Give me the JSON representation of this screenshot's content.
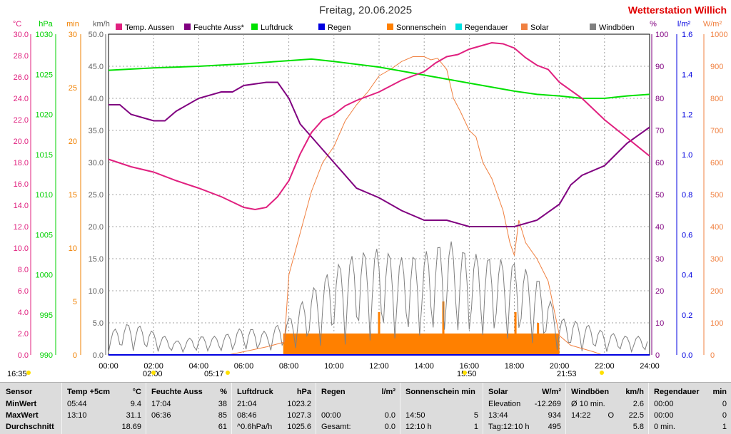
{
  "header": {
    "title": "Freitag, 20.06.2025",
    "station": "Wetterstation Willich"
  },
  "axes_left": [
    {
      "unit": "°C",
      "color": "#e0207f",
      "ticks": [
        "30.0",
        "28.0",
        "26.0",
        "24.0",
        "22.0",
        "20.0",
        "18.0",
        "16.0",
        "14.0",
        "12.0",
        "10.0",
        "8.0",
        "6.0",
        "4.0",
        "2.0",
        "0.0"
      ],
      "range": [
        0,
        30
      ]
    },
    {
      "unit": "hPa",
      "color": "#00d000",
      "ticks": [
        "1030",
        "1025",
        "1020",
        "1015",
        "1010",
        "1005",
        "1000",
        "995",
        "990"
      ],
      "range": [
        990,
        1030
      ]
    },
    {
      "unit": "min",
      "color": "#f08000",
      "ticks": [
        "30",
        "25",
        "20",
        "15",
        "10",
        "5",
        "0"
      ],
      "range": [
        0,
        30
      ]
    },
    {
      "unit": "km/h",
      "color": "#606060",
      "ticks": [
        "50.0",
        "45.0",
        "40.0",
        "35.0",
        "30.0",
        "25.0",
        "20.0",
        "15.0",
        "10.0",
        "5.0",
        "0.0"
      ],
      "range": [
        0,
        50
      ]
    }
  ],
  "axes_right": [
    {
      "unit": "%",
      "color": "#800080",
      "ticks": [
        "100",
        "90",
        "80",
        "70",
        "60",
        "50",
        "40",
        "30",
        "20",
        "10",
        "0"
      ],
      "range": [
        0,
        100
      ]
    },
    {
      "unit": "l/m²",
      "color": "#0000e0",
      "ticks": [
        "1.6",
        "1.4",
        "1.2",
        "1.0",
        "0.8",
        "0.6",
        "0.4",
        "0.2",
        "0.0"
      ],
      "range": [
        0,
        1.6
      ]
    },
    {
      "unit": "W/m²",
      "color": "#f08040",
      "ticks": [
        "1000",
        "900",
        "800",
        "700",
        "600",
        "500",
        "400",
        "300",
        "200",
        "100",
        "0"
      ],
      "range": [
        0,
        1000
      ]
    }
  ],
  "legend": [
    {
      "label": "Temp. Aussen",
      "color": "#e0207f"
    },
    {
      "label": "Feuchte Auss*",
      "color": "#800080"
    },
    {
      "label": "Luftdruck",
      "color": "#00e000"
    },
    {
      "label": "Regen",
      "color": "#0000e0"
    },
    {
      "label": "Sonnenschein",
      "color": "#ff8000"
    },
    {
      "label": "Regendauer",
      "color": "#00e0e0"
    },
    {
      "label": "Solar",
      "color": "#f08040"
    },
    {
      "label": "Windböen",
      "color": "#808080"
    }
  ],
  "x_ticks": [
    "00:00",
    "02:00",
    "04:00",
    "06:00",
    "08:00",
    "10:00",
    "12:00",
    "14:00",
    "16:00",
    "18:00",
    "20:00",
    "22:00",
    "24:00"
  ],
  "sun_markers": [
    "16:35",
    "02:00",
    "05:17",
    "15:50",
    "21:53"
  ],
  "chart_data": {
    "type": "line",
    "title": "Freitag, 20.06.2025",
    "x_unit": "hours",
    "xlim": [
      0,
      24
    ],
    "grid": true,
    "legend_placement": "top",
    "series": [
      {
        "name": "Temp. Aussen",
        "unit": "°C",
        "color": "#e0207f",
        "x": [
          0,
          1,
          2,
          3,
          4,
          5,
          5.5,
          6,
          6.5,
          7,
          7.5,
          8,
          8.5,
          9,
          9.5,
          10,
          10.5,
          11,
          12,
          13,
          14,
          14.5,
          15,
          15.5,
          16,
          16.5,
          17,
          17.5,
          18,
          18.5,
          19,
          19.5,
          20,
          21,
          22,
          23,
          24
        ],
        "y": [
          18.3,
          17.6,
          17.1,
          16.3,
          15.6,
          14.8,
          14.3,
          13.8,
          13.6,
          13.8,
          14.8,
          16.3,
          18.8,
          20.8,
          22.0,
          22.5,
          23.3,
          23.8,
          24.6,
          25.7,
          26.5,
          27.3,
          27.9,
          28.1,
          28.6,
          28.9,
          29.2,
          29.1,
          28.7,
          27.8,
          27.1,
          26.7,
          25.5,
          24.0,
          22.0,
          20.3,
          18.6
        ]
      },
      {
        "name": "Feuchte Auss*",
        "unit": "%",
        "color": "#800080",
        "x": [
          0,
          0.5,
          1,
          2,
          2.5,
          3,
          4,
          5,
          5.5,
          6,
          7,
          7.5,
          8,
          8.5,
          9,
          10,
          11,
          12,
          13,
          14,
          15,
          16,
          17,
          18,
          19,
          20,
          20.5,
          21,
          22,
          23,
          24
        ],
        "y": [
          78,
          78,
          75,
          73,
          73,
          76,
          80,
          82,
          82,
          84,
          85,
          85,
          80,
          72,
          68,
          60,
          52,
          49,
          45,
          42,
          42,
          40,
          40,
          40,
          42,
          47,
          53,
          56,
          59,
          66,
          71
        ]
      },
      {
        "name": "Luftdruck",
        "unit": "hPa",
        "color": "#00e000",
        "x": [
          0,
          2,
          4,
          6,
          8,
          9,
          10,
          12,
          14,
          16,
          18,
          19,
          20,
          21,
          22,
          23,
          24
        ],
        "y": [
          1025.5,
          1025.8,
          1026.0,
          1026.3,
          1026.7,
          1026.9,
          1026.6,
          1025.9,
          1024.9,
          1023.9,
          1022.9,
          1022.5,
          1022.3,
          1022.0,
          1022.0,
          1022.3,
          1022.5
        ]
      },
      {
        "name": "Regen",
        "unit": "l/m²",
        "color": "#0000e0",
        "x": [
          0,
          24
        ],
        "y": [
          0,
          0
        ]
      },
      {
        "name": "Solar",
        "unit": "W/m²",
        "color": "#f08040",
        "x": [
          0,
          5.3,
          6,
          7,
          7.8,
          8,
          8.5,
          9,
          9.5,
          10,
          10.5,
          11,
          11.5,
          12,
          12.5,
          13,
          13.5,
          14,
          14.3,
          14.6,
          15,
          15.3,
          15.6,
          15.8,
          16,
          16.3,
          16.6,
          17,
          17.5,
          17.8,
          18.0,
          18.2,
          18.5,
          19,
          19.5,
          20,
          20.5,
          21,
          21.5,
          21.9,
          24
        ],
        "y": [
          0,
          0,
          10,
          25,
          40,
          250,
          380,
          510,
          600,
          650,
          730,
          780,
          820,
          870,
          890,
          915,
          930,
          930,
          920,
          925,
          890,
          800,
          760,
          730,
          700,
          680,
          600,
          550,
          450,
          350,
          310,
          420,
          350,
          300,
          230,
          60,
          30,
          20,
          10,
          0,
          0
        ]
      },
      {
        "name": "Sonnenschein",
        "unit": "min",
        "color": "#ff8000",
        "x": [
          7.75,
          12,
          12.05,
          14.8,
          14.85,
          18.05,
          18.1,
          19,
          19.05,
          20.0
        ],
        "y": [
          2,
          2,
          4,
          2,
          5,
          2,
          4,
          2,
          3,
          2
        ]
      },
      {
        "name": "Windböen",
        "unit": "km/h",
        "color": "#808080",
        "x": [
          0,
          1,
          2,
          3,
          4,
          5,
          6,
          7,
          8,
          9,
          10,
          11,
          12,
          13,
          14,
          15,
          16,
          17,
          18,
          19,
          20,
          21,
          22,
          23,
          24
        ],
        "y": [
          2.5,
          3.5,
          2.5,
          1.5,
          2.0,
          2.0,
          3.0,
          2.5,
          4.0,
          7.0,
          9.5,
          11.0,
          11.5,
          10.5,
          11.0,
          12.5,
          11.0,
          10.5,
          10.0,
          8.5,
          4.0,
          3.5,
          2.5,
          2.0,
          2.0
        ]
      }
    ]
  },
  "stats": {
    "columns": [
      {
        "title": "Sensor",
        "unit": "",
        "rows": [
          {
            "a": "MinWert",
            "b": "",
            "c": ""
          },
          {
            "a": "MaxWert",
            "b": "",
            "c": ""
          },
          {
            "a": "Durchschnitt",
            "b": "",
            "c": ""
          }
        ]
      },
      {
        "title": "Temp +5cm",
        "unit": "°C",
        "rows": [
          {
            "a": "05:44",
            "c": "9.4"
          },
          {
            "a": "13:10",
            "c": "31.1"
          },
          {
            "a": "",
            "c": "18.69"
          }
        ]
      },
      {
        "title": "Feuchte Auss",
        "unit": "%",
        "rows": [
          {
            "a": "17:04",
            "c": "38"
          },
          {
            "a": "06:36",
            "c": "85"
          },
          {
            "a": "",
            "c": "61"
          }
        ]
      },
      {
        "title": "Luftdruck",
        "unit": "hPa",
        "rows": [
          {
            "a": "21:04",
            "c": "1023.2"
          },
          {
            "a": "08:46",
            "c": "1027.3"
          },
          {
            "a": "^0.6hPa/h",
            "c": "1025.6"
          }
        ]
      },
      {
        "title": "Regen",
        "unit": "l/m²",
        "rows": [
          {
            "a": "",
            "c": ""
          },
          {
            "a": "00:00",
            "c": "0.0"
          },
          {
            "a": "Gesamt:",
            "c": "0.0"
          }
        ]
      },
      {
        "title": "Sonnenschein min",
        "unit": "",
        "rows": [
          {
            "a": "",
            "c": ""
          },
          {
            "a": "14:50",
            "c": "5"
          },
          {
            "a": "12:10 h",
            "c": "1"
          }
        ]
      },
      {
        "title": "Solar",
        "unit": "W/m²",
        "rows": [
          {
            "a": "Elevation",
            "c": "-12.269"
          },
          {
            "a": "13:44",
            "c": "934"
          },
          {
            "a": "Tag:12:10 h",
            "c": "495"
          }
        ]
      },
      {
        "title": "Windböen",
        "unit": "km/h",
        "rows": [
          {
            "a": "Ø 10 min.",
            "c": "2.6"
          },
          {
            "a": "14:22",
            "b": "O",
            "c": "22.5"
          },
          {
            "a": "",
            "c": "5.8"
          }
        ]
      },
      {
        "title": "Regendauer",
        "unit": "min",
        "rows": [
          {
            "a": "00:00",
            "c": "0"
          },
          {
            "a": "00:00",
            "c": "0"
          },
          {
            "a": "0 min.",
            "c": "1"
          }
        ]
      }
    ]
  }
}
